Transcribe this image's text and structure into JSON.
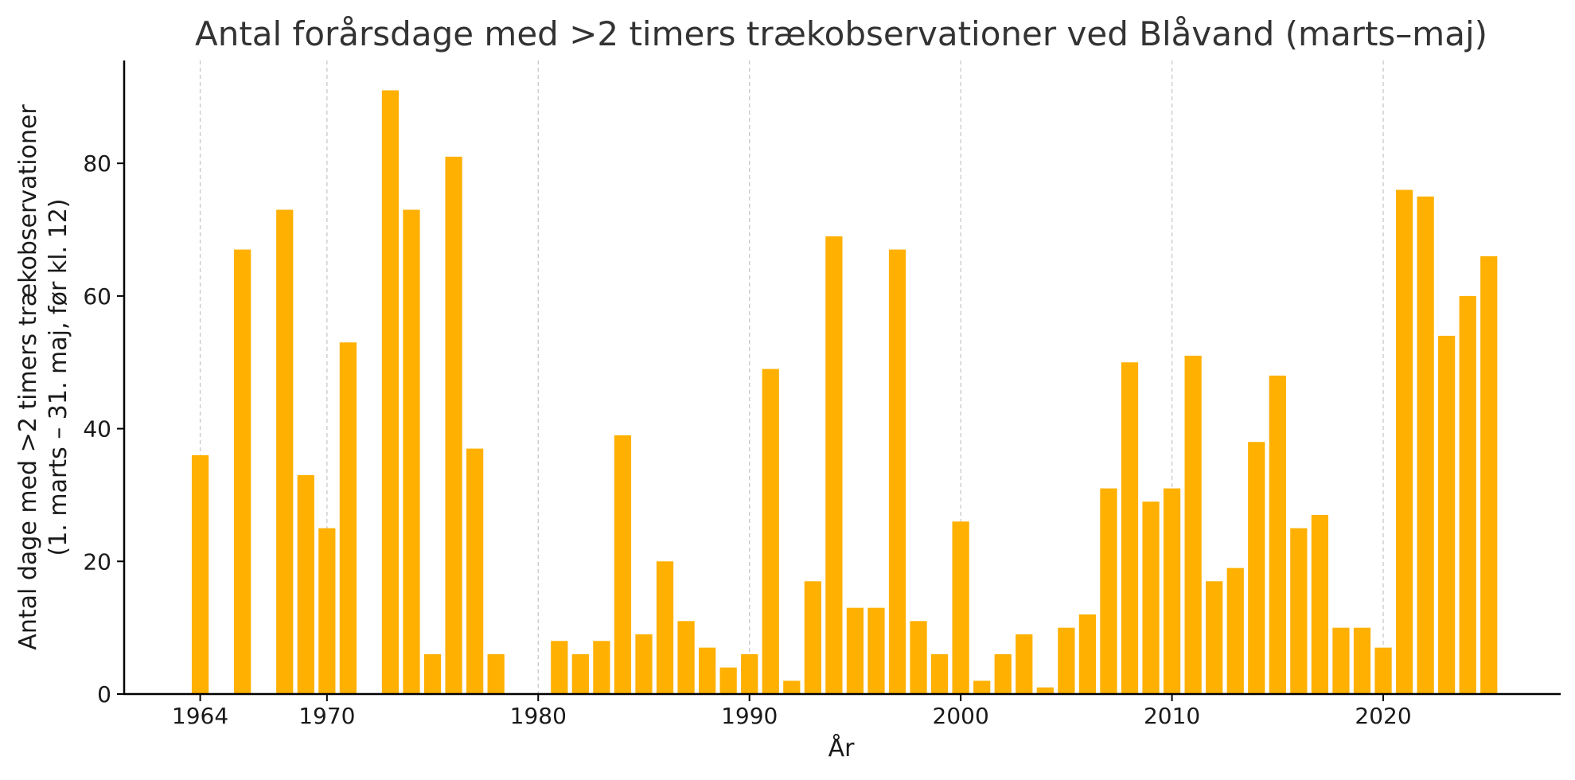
{
  "chart_data": {
    "type": "bar",
    "title": "Antal forårsdage med >2 timers trækobservationer ved Blåvand (marts–maj)",
    "xlabel": "År",
    "ylabel_lines": [
      "Antal dage med >2 timers trækobservationer",
      "(1. marts – 31. maj, før kl. 12)"
    ],
    "xlim": [
      1960.4,
      2028.4
    ],
    "ylim": [
      0,
      95.5
    ],
    "x_ticks": [
      1964,
      1970,
      1980,
      1990,
      2000,
      2010,
      2020
    ],
    "y_ticks": [
      0,
      20,
      40,
      60,
      80
    ],
    "grid": "vertical dashed at x ticks",
    "bar_color": "#FFB000",
    "x": [
      1964,
      1966,
      1968,
      1969,
      1970,
      1971,
      1973,
      1974,
      1975,
      1976,
      1977,
      1978,
      1981,
      1982,
      1983,
      1984,
      1985,
      1986,
      1987,
      1988,
      1989,
      1990,
      1991,
      1992,
      1993,
      1994,
      1995,
      1996,
      1997,
      1998,
      1999,
      2000,
      2001,
      2002,
      2003,
      2004,
      2005,
      2006,
      2007,
      2008,
      2009,
      2010,
      2011,
      2012,
      2013,
      2014,
      2015,
      2016,
      2017,
      2018,
      2019,
      2020,
      2021,
      2022,
      2023,
      2024,
      2025
    ],
    "values": [
      36,
      67,
      73,
      33,
      25,
      53,
      91,
      73,
      6,
      81,
      37,
      6,
      8,
      6,
      8,
      39,
      9,
      20,
      11,
      7,
      4,
      6,
      49,
      2,
      17,
      69,
      13,
      13,
      67,
      11,
      6,
      26,
      2,
      6,
      9,
      1,
      10,
      12,
      31,
      50,
      29,
      31,
      51,
      17,
      19,
      38,
      48,
      25,
      27,
      10,
      10,
      7,
      76,
      75,
      54,
      60,
      66
    ]
  }
}
